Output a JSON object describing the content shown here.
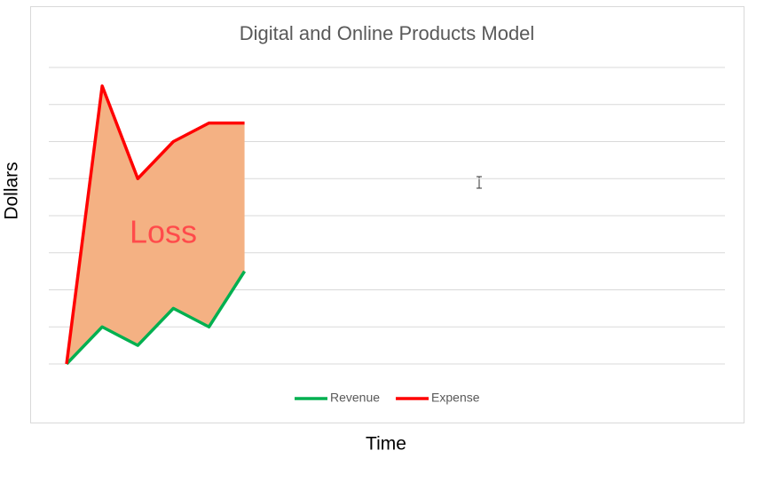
{
  "chart_data": {
    "type": "line",
    "title": "Digital and Online Products Model",
    "x_label": "Time",
    "y_label": "Dollars",
    "categories": [
      null,
      null,
      null,
      null,
      null,
      null,
      null,
      null,
      null,
      null,
      null,
      null,
      null,
      null,
      null,
      null,
      null,
      null,
      null
    ],
    "series": [
      {
        "name": "Revenue",
        "color": "#00B050",
        "values": [
          0,
          1,
          0.5,
          1.5,
          1,
          2.5,
          null,
          null,
          null,
          null,
          null,
          null,
          null,
          null,
          null,
          null,
          null,
          null,
          null
        ]
      },
      {
        "name": "Expense",
        "color": "#FF0000",
        "values": [
          0,
          7.5,
          5,
          6,
          6.5,
          6.5,
          null,
          null,
          null,
          null,
          null,
          null,
          null,
          null,
          null,
          null,
          null,
          null,
          null
        ]
      }
    ],
    "area_color": "#F4B183",
    "annotation": {
      "text": "Loss",
      "color": "#FF4B4B"
    },
    "ylim": [
      0,
      8
    ],
    "yticks": [
      0,
      1,
      2,
      3,
      4,
      5,
      6,
      7,
      8
    ],
    "grid": true,
    "legend": "bottom"
  }
}
